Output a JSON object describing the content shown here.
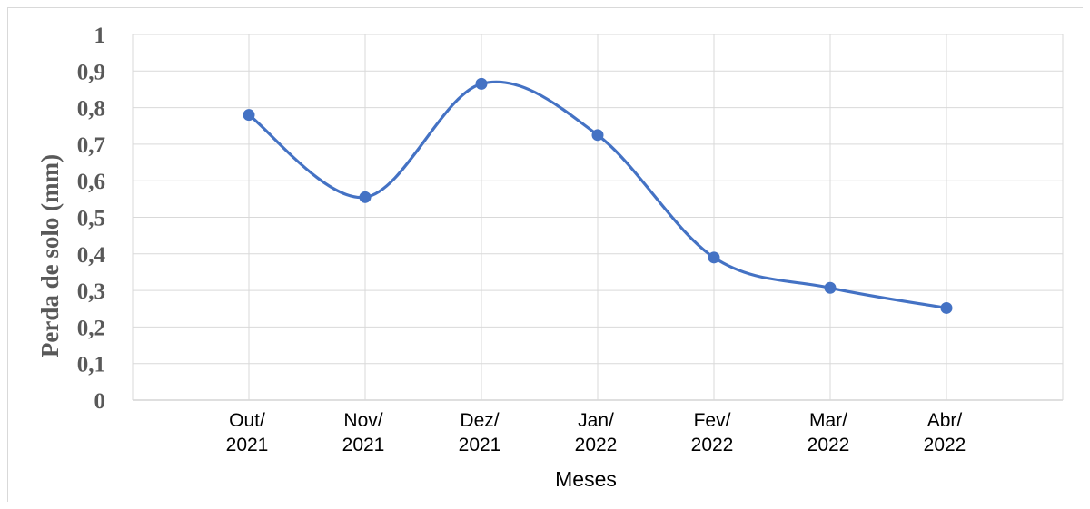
{
  "chart_data": {
    "type": "line",
    "smooth": true,
    "categories": [
      [
        "Out/",
        "2021"
      ],
      [
        "Nov/",
        "2021"
      ],
      [
        "Dez/",
        "2021"
      ],
      [
        "Jan/",
        "2022"
      ],
      [
        "Fev/",
        "2022"
      ],
      [
        "Mar/",
        "2022"
      ],
      [
        "Abr/",
        "2022"
      ]
    ],
    "series": [
      {
        "values": [
          0.78,
          0.555,
          0.865,
          0.725,
          0.39,
          0.307,
          0.252
        ],
        "color": "#4472c4"
      }
    ],
    "xlabel": "Meses",
    "ylabel": "Perda de solo (mm)",
    "ylim": [
      0,
      1
    ],
    "yticks": [
      "0",
      "0,1",
      "0,2",
      "0,3",
      "0,4",
      "0,5",
      "0,6",
      "0,7",
      "0,8",
      "0,9",
      "1"
    ],
    "grid": true,
    "legend": "none"
  }
}
